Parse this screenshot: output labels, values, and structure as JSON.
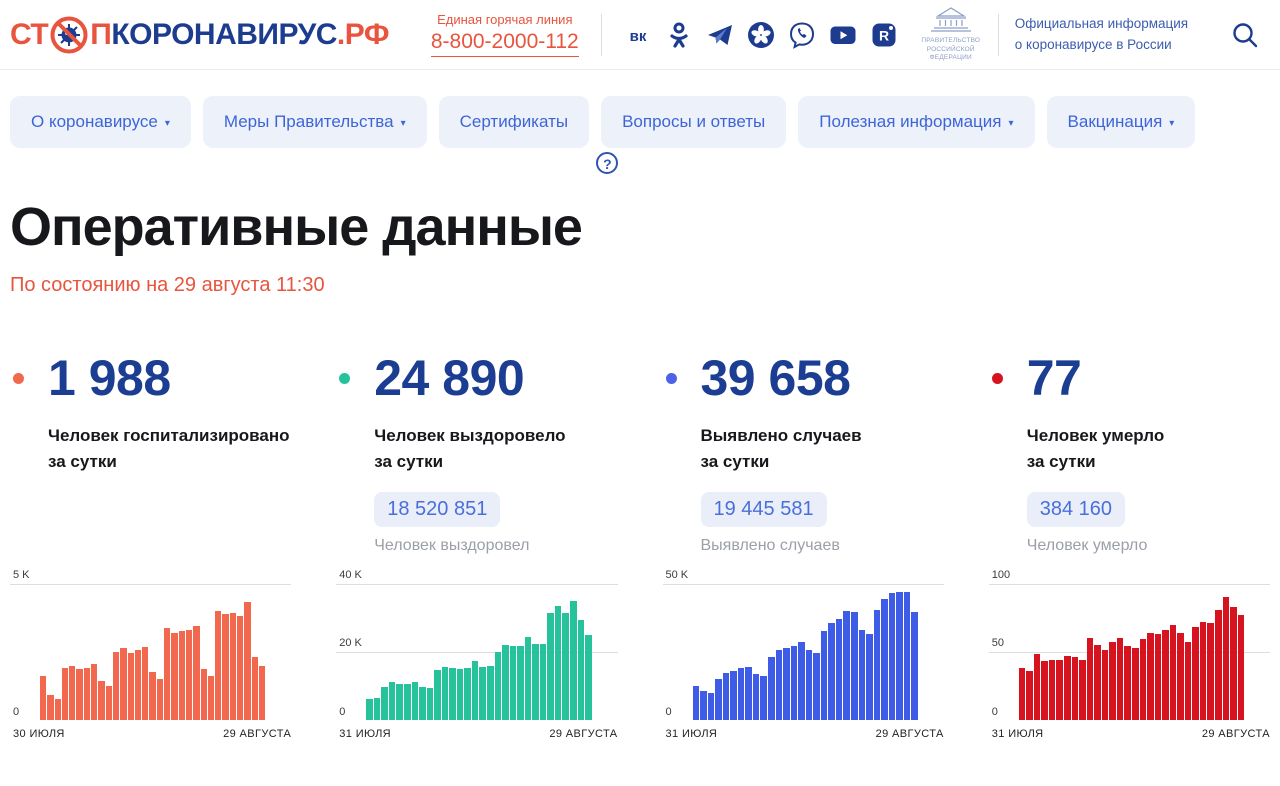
{
  "colors": {
    "accent_red": "#e8543e",
    "navy": "#1d3c8f",
    "number_blue": "#1c3e92",
    "nav_blue": "#3e65d8",
    "badge_bg": "#e9eef9",
    "badge_text": "#4a6fd9",
    "gray_text": "#9b9fa7"
  },
  "header": {
    "logo": {
      "prefix": "СТ",
      "p": "П",
      "main": "КОРОНАВИРУС",
      "tld": ".РФ"
    },
    "hotline": {
      "label": "Единая горячая линия",
      "phone": "8-800-2000-112"
    },
    "social_icons": [
      "vk-icon",
      "odnoklassniki-icon",
      "telegram-icon",
      "flower-icon",
      "viber-icon",
      "youtube-icon",
      "rutube-icon"
    ],
    "gov": {
      "org_line1": "ПРАВИТЕЛЬСТВО",
      "org_line2": "РОССИЙСКОЙ",
      "org_line3": "ФЕДЕРАЦИИ",
      "tagline_line1": "Официальная информация",
      "tagline_line2": "о коронавирусе в России"
    }
  },
  "nav": {
    "items": [
      {
        "label": "О коронавирусе",
        "dropdown": true
      },
      {
        "label": "Меры Правительства",
        "dropdown": true
      },
      {
        "label": "Сертификаты",
        "dropdown": false
      },
      {
        "label": "Вопросы и ответы",
        "dropdown": false
      },
      {
        "label": "Полезная информация",
        "dropdown": true
      },
      {
        "label": "Вакцинация",
        "dropdown": true
      }
    ]
  },
  "page": {
    "title": "Оперативные данные",
    "help_glyph": "?",
    "as_of": "По состоянию на 29 августа 11:30"
  },
  "stats": [
    {
      "value": "1 988",
      "label_line1": "Человек госпитализировано",
      "label_line2": "за сутки",
      "dot_color": "#f2684e",
      "total": null,
      "total_label": null
    },
    {
      "value": "24 890",
      "label_line1": "Человек выздоровело",
      "label_line2": "за сутки",
      "dot_color": "#25c29c",
      "total": "18 520 851",
      "total_label": "Человек выздоровел"
    },
    {
      "value": "39 658",
      "label_line1": "Выявлено случаев",
      "label_line2": "за сутки",
      "dot_color": "#4a63e7",
      "total": "19 445 581",
      "total_label": "Выявлено случаев"
    },
    {
      "value": "77",
      "label_line1": "Человек умерло",
      "label_line2": "за сутки",
      "dot_color": "#d6131f",
      "total": "384 160",
      "total_label": "Человек умерло"
    }
  ],
  "chart_data": [
    {
      "type": "bar",
      "color": "#f2684e",
      "ylim": [
        0,
        5000
      ],
      "grid": true,
      "y_top_label": "5 K",
      "y_mid_label": null,
      "y_zero_label": "0",
      "x_start_label": "30 ИЮЛЯ",
      "x_end_label": "29 АВГУСТА",
      "values": [
        1590,
        910,
        775,
        1910,
        1960,
        1860,
        1910,
        2060,
        1440,
        1250,
        2500,
        2620,
        2440,
        2560,
        2690,
        1750,
        1500,
        3370,
        3190,
        3250,
        3310,
        3440,
        1870,
        1620,
        4000,
        3870,
        3940,
        3810,
        4310,
        2310,
        1988
      ]
    },
    {
      "type": "bar",
      "color": "#25c29c",
      "ylim": [
        0,
        40000
      ],
      "grid": true,
      "y_top_label": "40 K",
      "y_mid_label": "20 K",
      "y_zero_label": "0",
      "x_start_label": "31 ИЮЛЯ",
      "x_end_label": "29 АВГУСТА",
      "values": [
        6100,
        6300,
        9500,
        11000,
        10500,
        10600,
        11200,
        9600,
        9300,
        14500,
        15500,
        15100,
        15000,
        15300,
        17400,
        15600,
        15800,
        20000,
        22100,
        21600,
        21800,
        24200,
        22300,
        22400,
        31400,
        33500,
        31300,
        34800,
        29300,
        24890
      ]
    },
    {
      "type": "bar",
      "color": "#3e5ce5",
      "ylim": [
        0,
        50000
      ],
      "grid": true,
      "y_top_label": "50 K",
      "y_mid_label": null,
      "y_zero_label": "0",
      "x_start_label": "31 ИЮЛЯ",
      "x_end_label": "29 АВГУСТА",
      "values": [
        12500,
        10500,
        9800,
        14800,
        17000,
        18000,
        19000,
        19500,
        16800,
        16000,
        23000,
        25500,
        26500,
        27000,
        28500,
        25500,
        24500,
        32500,
        35500,
        37000,
        40000,
        39500,
        33000,
        31500,
        40500,
        44500,
        46500,
        47000,
        46800,
        39658
      ]
    },
    {
      "type": "bar",
      "color": "#d6131f",
      "ylim": [
        0,
        100
      ],
      "grid": true,
      "y_top_label": "100",
      "y_mid_label": "50",
      "y_zero_label": "0",
      "x_start_label": "31 ИЮЛЯ",
      "x_end_label": "29 АВГУСТА",
      "values": [
        38,
        36,
        48,
        43,
        44,
        44,
        47,
        46,
        44,
        60,
        55,
        51,
        57,
        60,
        54,
        53,
        59,
        64,
        63,
        66,
        70,
        64,
        57,
        68,
        72,
        71,
        81,
        90,
        83,
        77
      ]
    }
  ]
}
